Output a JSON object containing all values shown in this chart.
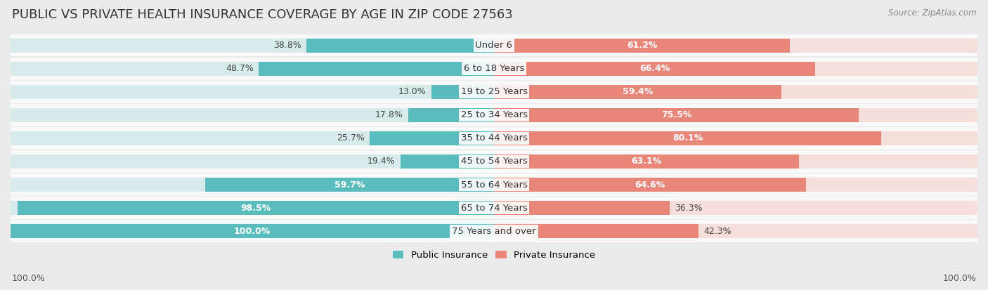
{
  "title": "PUBLIC VS PRIVATE HEALTH INSURANCE COVERAGE BY AGE IN ZIP CODE 27563",
  "source": "Source: ZipAtlas.com",
  "categories": [
    "Under 6",
    "6 to 18 Years",
    "19 to 25 Years",
    "25 to 34 Years",
    "35 to 44 Years",
    "45 to 54 Years",
    "55 to 64 Years",
    "65 to 74 Years",
    "75 Years and over"
  ],
  "public_values": [
    38.8,
    48.7,
    13.0,
    17.8,
    25.7,
    19.4,
    59.7,
    98.5,
    100.0
  ],
  "private_values": [
    61.2,
    66.4,
    59.4,
    75.5,
    80.1,
    63.1,
    64.6,
    36.3,
    42.3
  ],
  "public_color": "#5bbcbd",
  "private_color": "#e8867a",
  "public_color_light": "#b8dede",
  "private_color_light": "#f5c4bc",
  "bg_color": "#ebebeb",
  "row_bg_color": "#f9f9f9",
  "title_fontsize": 13,
  "label_fontsize": 9.5,
  "value_fontsize": 9,
  "axis_label_left": "100.0%",
  "axis_label_right": "100.0%",
  "legend_public": "Public Insurance",
  "legend_private": "Private Insurance"
}
